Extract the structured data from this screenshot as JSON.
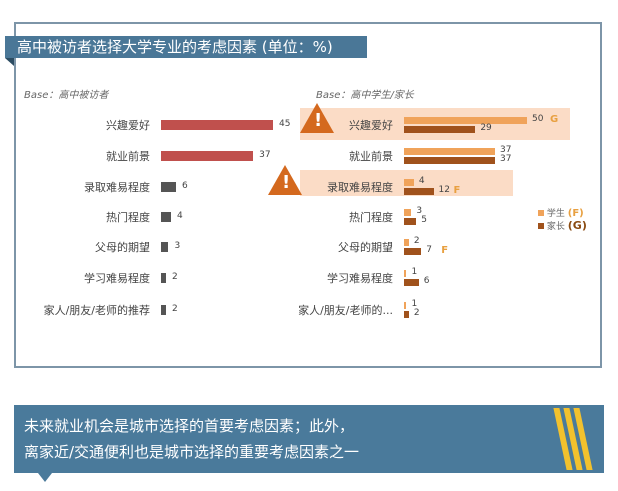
{
  "chart_data": [
    {
      "type": "bar",
      "orientation": "horizontal",
      "title": "高中被访者选择大学专业的考虑因素 (单位：%)",
      "base": "Base：高中被访者",
      "categories": [
        "兴趣爱好",
        "就业前景",
        "录取难易程度",
        "热门程度",
        "父母的期望",
        "学习难易程度",
        "家人/朋友/老师的推荐"
      ],
      "values": [
        45,
        37,
        6,
        4,
        3,
        2,
        2
      ],
      "colors": [
        "#c0504d",
        "#c0504d",
        "#555555",
        "#555555",
        "#555555",
        "#555555",
        "#555555"
      ]
    },
    {
      "type": "bar",
      "orientation": "horizontal",
      "base": "Base：高中学生/家长",
      "categories": [
        "兴趣爱好",
        "就业前景",
        "录取难易程度",
        "热门程度",
        "父母的期望",
        "学习难易程度",
        "家人/朋友/老师的..."
      ],
      "series": [
        {
          "name": "学生",
          "marker": "(F)",
          "color": "#f0a35a",
          "values": [
            50,
            37,
            4,
            3,
            2,
            1,
            1
          ]
        },
        {
          "name": "家长",
          "marker": "(G)",
          "color": "#a0521c",
          "values": [
            29,
            37,
            12,
            5,
            7,
            6,
            2
          ]
        }
      ],
      "flags": [
        [
          "G",
          ""
        ],
        [
          "",
          ""
        ],
        [
          "",
          "F"
        ],
        [
          "",
          ""
        ],
        [
          "",
          "F"
        ],
        [
          "",
          ""
        ],
        [
          "",
          ""
        ]
      ],
      "highlighted": [
        0,
        2
      ],
      "warning_icon": "exclamation-triangle-icon"
    }
  ],
  "banner": {
    "line1": "未来就业机会是城市选择的首要考虑因素；此外，",
    "line2": "离家近/交通便利也是城市选择的重要考虑因素之一"
  }
}
